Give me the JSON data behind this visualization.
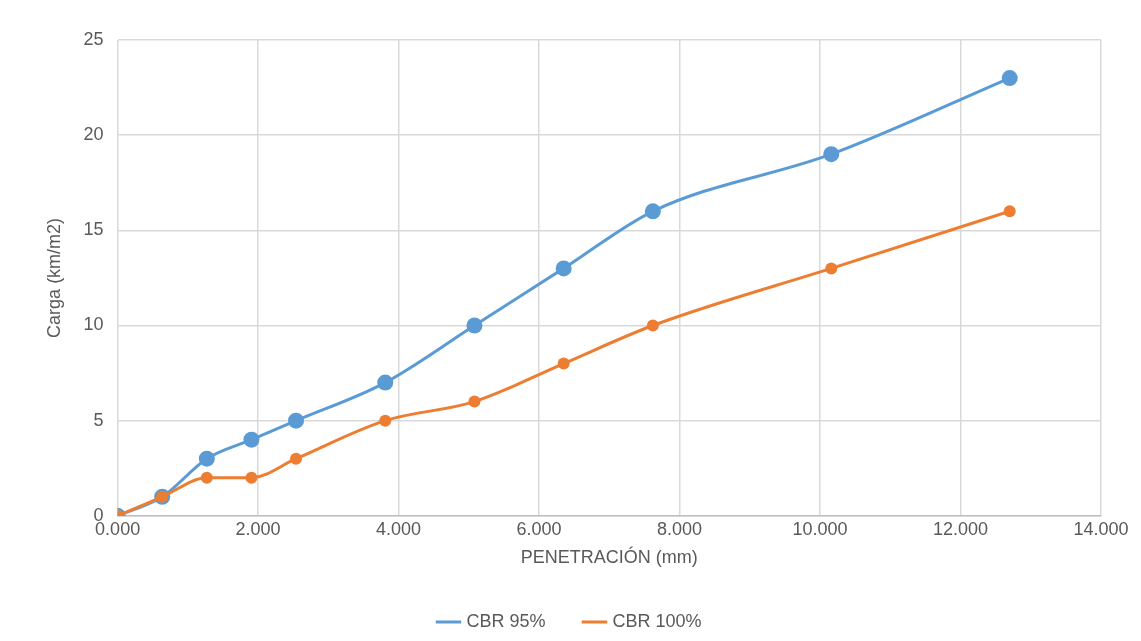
{
  "chart_data": {
    "type": "line",
    "xlabel": "PENETRACIÓN (mm)",
    "ylabel": "Carga (km/m2)",
    "x": [
      0,
      0.635,
      1.27,
      1.905,
      2.54,
      3.81,
      5.08,
      6.35,
      7.62,
      10.16,
      12.7
    ],
    "series": [
      {
        "name": "CBR 95%",
        "color": "#5b9bd5",
        "values": [
          0,
          1,
          3,
          4,
          5,
          7,
          10,
          13,
          16,
          19,
          23
        ]
      },
      {
        "name": "CBR 100%",
        "color": "#ed7d31",
        "values": [
          0,
          1,
          2,
          2,
          3,
          5,
          6,
          8,
          10,
          13,
          16
        ]
      }
    ],
    "xlim": [
      0,
      14
    ],
    "xticks": [
      {
        "value": 0,
        "label": "0.000"
      },
      {
        "value": 2,
        "label": "2.000"
      },
      {
        "value": 4,
        "label": "4.000"
      },
      {
        "value": 6,
        "label": "6.000"
      },
      {
        "value": 8,
        "label": "8.000"
      },
      {
        "value": 10,
        "label": "10.000"
      },
      {
        "value": 12,
        "label": "12.000"
      },
      {
        "value": 14,
        "label": "14.000"
      }
    ],
    "ylim": [
      0,
      25
    ],
    "yticks": [
      0,
      5,
      10,
      15,
      20,
      25
    ],
    "grid": true,
    "legend": "bottom",
    "marker": "circle",
    "line_style": "solid"
  }
}
